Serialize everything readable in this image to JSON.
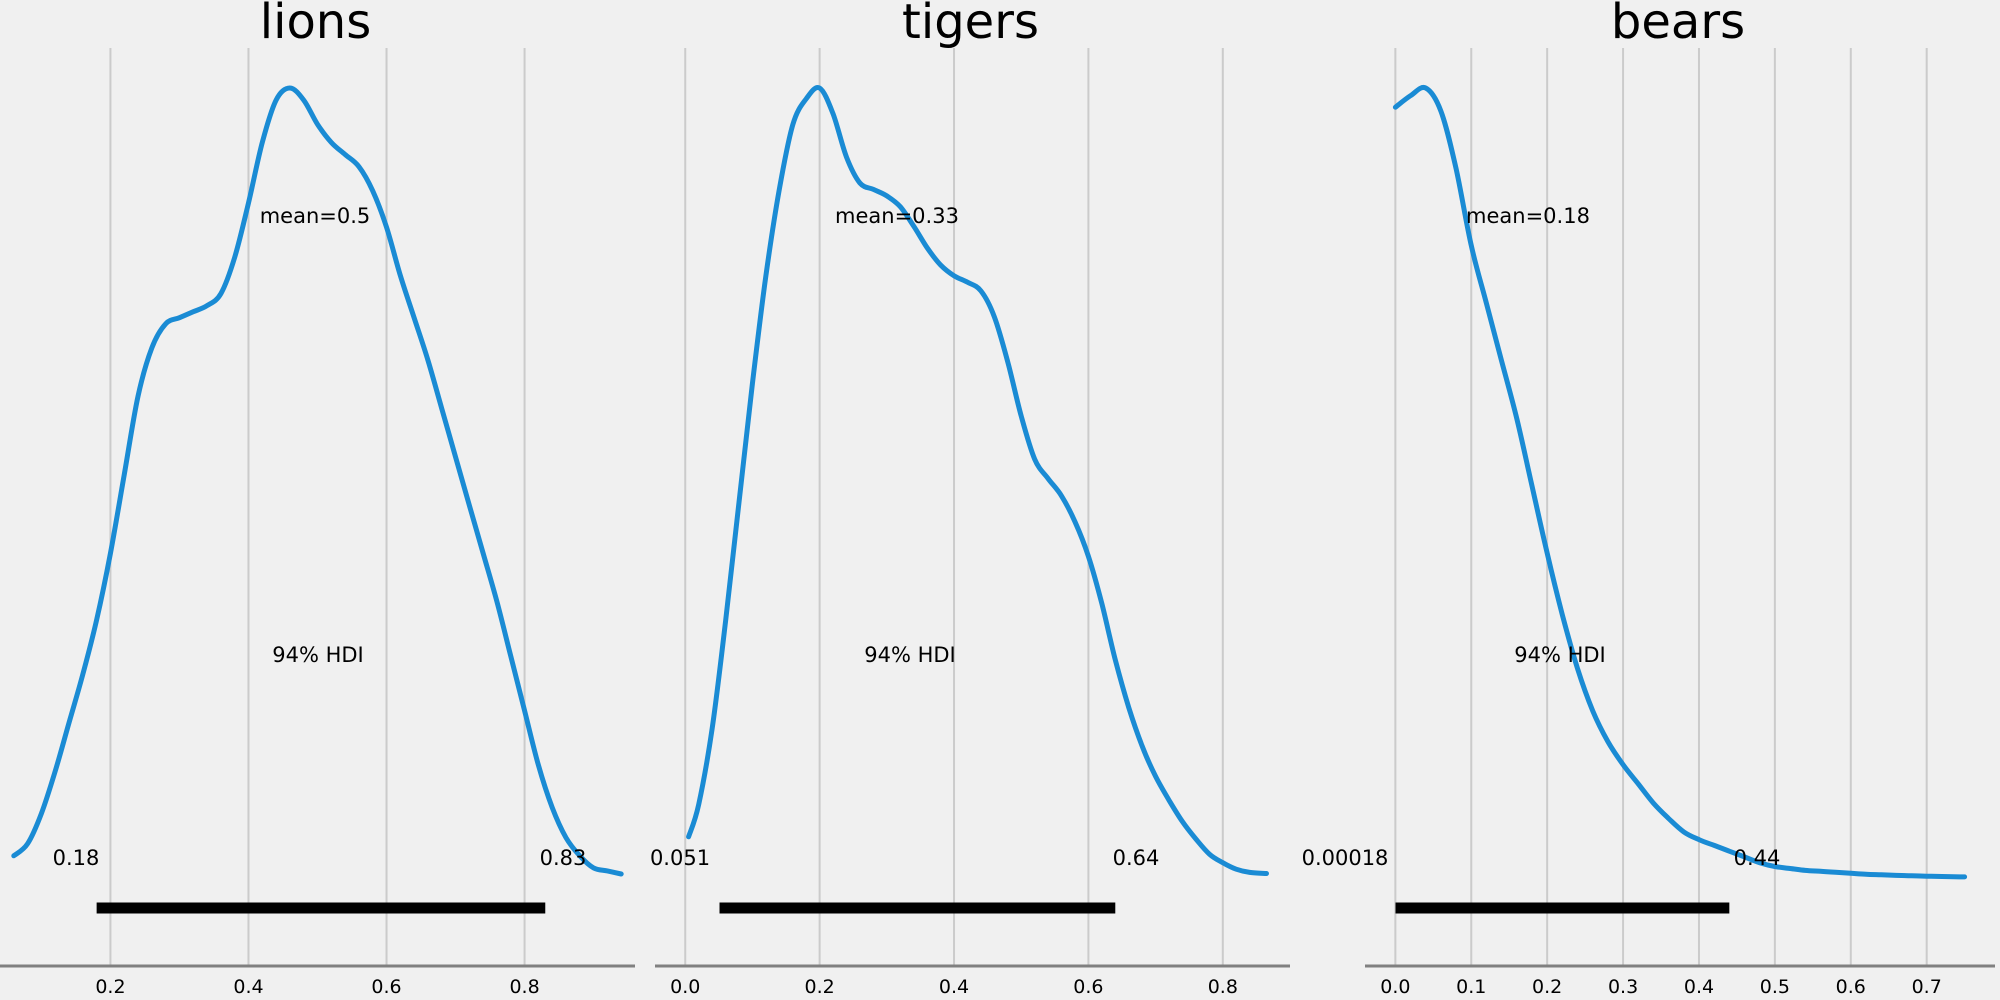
{
  "chart_data": [
    {
      "type": "area",
      "title": "lions",
      "xlim": [
        0.04,
        0.96
      ],
      "xticks": [
        0.2,
        0.4,
        0.6,
        0.8
      ],
      "xtick_labels": [
        "0.2",
        "0.4",
        "0.6",
        "0.8"
      ],
      "grid": "vertical",
      "color": "#1a8bd4",
      "x": [
        0.06,
        0.08,
        0.1,
        0.12,
        0.14,
        0.16,
        0.18,
        0.2,
        0.22,
        0.24,
        0.26,
        0.28,
        0.3,
        0.32,
        0.34,
        0.36,
        0.38,
        0.4,
        0.42,
        0.44,
        0.46,
        0.48,
        0.5,
        0.52,
        0.54,
        0.56,
        0.58,
        0.6,
        0.62,
        0.64,
        0.66,
        0.68,
        0.7,
        0.72,
        0.74,
        0.76,
        0.78,
        0.8,
        0.82,
        0.84,
        0.86,
        0.88,
        0.9,
        0.92,
        0.94
      ],
      "density": [
        0.04,
        0.06,
        0.11,
        0.18,
        0.26,
        0.34,
        0.43,
        0.54,
        0.67,
        0.8,
        0.88,
        0.92,
        0.93,
        0.94,
        0.95,
        0.97,
        1.03,
        1.12,
        1.22,
        1.29,
        1.31,
        1.29,
        1.25,
        1.22,
        1.2,
        1.18,
        1.14,
        1.08,
        1.0,
        0.93,
        0.86,
        0.78,
        0.7,
        0.62,
        0.54,
        0.46,
        0.37,
        0.28,
        0.19,
        0.12,
        0.07,
        0.04,
        0.02,
        0.015,
        0.01
      ],
      "mean_label": "mean=0.5",
      "hdi_label": "94% HDI",
      "hdi": [
        0.18,
        0.83
      ],
      "hdi_low_label": "0.18",
      "hdi_high_label": "0.83"
    },
    {
      "type": "area",
      "title": "tigers",
      "xlim": [
        -0.045,
        0.9
      ],
      "xticks": [
        0.0,
        0.2,
        0.4,
        0.6,
        0.8
      ],
      "xtick_labels": [
        "0.0",
        "0.2",
        "0.4",
        "0.6",
        "0.8"
      ],
      "grid": "vertical",
      "color": "#1a8bd4",
      "x": [
        0.005,
        0.02,
        0.04,
        0.06,
        0.08,
        0.1,
        0.12,
        0.14,
        0.16,
        0.18,
        0.2,
        0.22,
        0.24,
        0.26,
        0.28,
        0.3,
        0.32,
        0.34,
        0.36,
        0.38,
        0.4,
        0.42,
        0.44,
        0.46,
        0.48,
        0.5,
        0.52,
        0.54,
        0.56,
        0.58,
        0.6,
        0.62,
        0.64,
        0.66,
        0.68,
        0.7,
        0.72,
        0.74,
        0.76,
        0.78,
        0.8,
        0.82,
        0.84,
        0.865
      ],
      "density": [
        0.2,
        0.35,
        0.7,
        1.2,
        1.75,
        2.3,
        2.8,
        3.2,
        3.5,
        3.62,
        3.67,
        3.55,
        3.35,
        3.23,
        3.2,
        3.17,
        3.12,
        3.03,
        2.93,
        2.85,
        2.8,
        2.77,
        2.73,
        2.61,
        2.4,
        2.15,
        1.95,
        1.86,
        1.78,
        1.66,
        1.5,
        1.28,
        1.02,
        0.8,
        0.62,
        0.48,
        0.37,
        0.27,
        0.19,
        0.12,
        0.08,
        0.05,
        0.035,
        0.03
      ],
      "mean_label": "mean=0.33",
      "hdi_label": "94% HDI",
      "hdi": [
        0.051,
        0.64
      ],
      "hdi_low_label": "0.051",
      "hdi_high_label": "0.64"
    },
    {
      "type": "area",
      "title": "bears",
      "xlim": [
        -0.04,
        0.79
      ],
      "xticks": [
        0.0,
        0.1,
        0.2,
        0.3,
        0.4,
        0.5,
        0.6,
        0.7
      ],
      "xtick_labels": [
        "0.0",
        "0.1",
        "0.2",
        "0.3",
        "0.4",
        "0.5",
        "0.6",
        "0.7"
      ],
      "grid": "vertical",
      "color": "#1a8bd4",
      "x": [
        0.0,
        0.02,
        0.04,
        0.06,
        0.08,
        0.1,
        0.12,
        0.14,
        0.16,
        0.18,
        0.2,
        0.22,
        0.24,
        0.26,
        0.28,
        0.3,
        0.32,
        0.34,
        0.36,
        0.38,
        0.4,
        0.42,
        0.44,
        0.46,
        0.48,
        0.5,
        0.52,
        0.54,
        0.56,
        0.58,
        0.6,
        0.62,
        0.64,
        0.66,
        0.68,
        0.7,
        0.72,
        0.75
      ],
      "density": [
        4.02,
        4.08,
        4.12,
        4.0,
        3.7,
        3.3,
        3.0,
        2.7,
        2.4,
        2.05,
        1.7,
        1.38,
        1.1,
        0.88,
        0.72,
        0.6,
        0.5,
        0.4,
        0.32,
        0.25,
        0.21,
        0.18,
        0.15,
        0.12,
        0.09,
        0.07,
        0.06,
        0.05,
        0.045,
        0.04,
        0.035,
        0.03,
        0.027,
        0.024,
        0.022,
        0.02,
        0.018,
        0.016
      ],
      "mean_label": "mean=0.18",
      "hdi_label": "94% HDI",
      "hdi": [
        0.00018,
        0.44
      ],
      "hdi_low_label": "0.00018",
      "hdi_high_label": "0.44"
    }
  ]
}
